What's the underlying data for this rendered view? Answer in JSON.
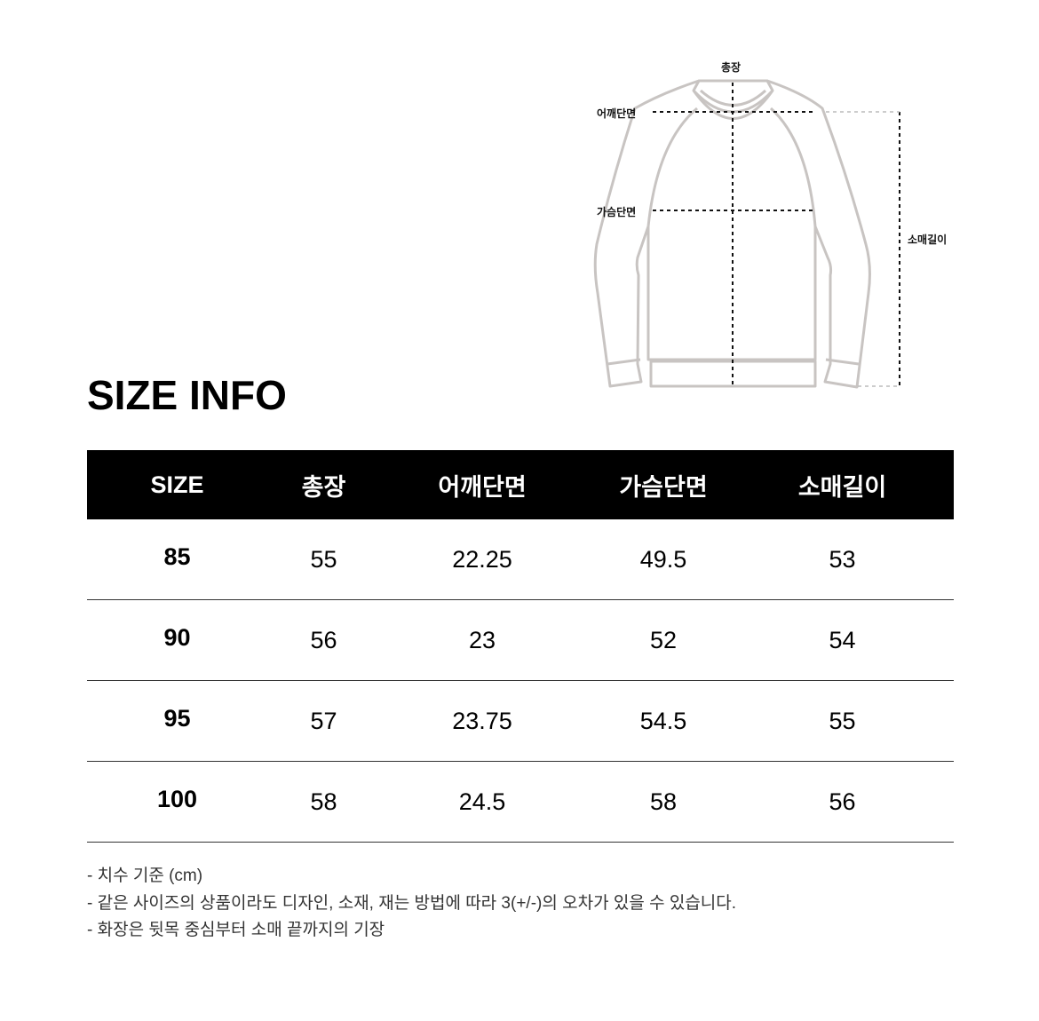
{
  "diagram": {
    "labels": {
      "total_length": "총장",
      "shoulder": "어깨단면",
      "chest": "가슴단면",
      "sleeve": "소매길이"
    },
    "outline_color": "#c8c4c2"
  },
  "title": "SIZE INFO",
  "table": {
    "headers": [
      "SIZE",
      "총장",
      "어깨단면",
      "가슴단면",
      "소매길이"
    ],
    "rows": [
      [
        "85",
        "55",
        "22.25",
        "49.5",
        "53"
      ],
      [
        "90",
        "56",
        "23",
        "52",
        "54"
      ],
      [
        "95",
        "57",
        "23.75",
        "54.5",
        "55"
      ],
      [
        "100",
        "58",
        "24.5",
        "58",
        "56"
      ]
    ]
  },
  "notes": [
    "- 치수 기준 (cm)",
    "- 같은 사이즈의 상품이라도 디자인, 소재, 재는 방법에 따라 3(+/-)의 오차가 있을 수 있습니다.",
    "- 화장은 뒷목 중심부터 소매 끝까지의 기장"
  ]
}
